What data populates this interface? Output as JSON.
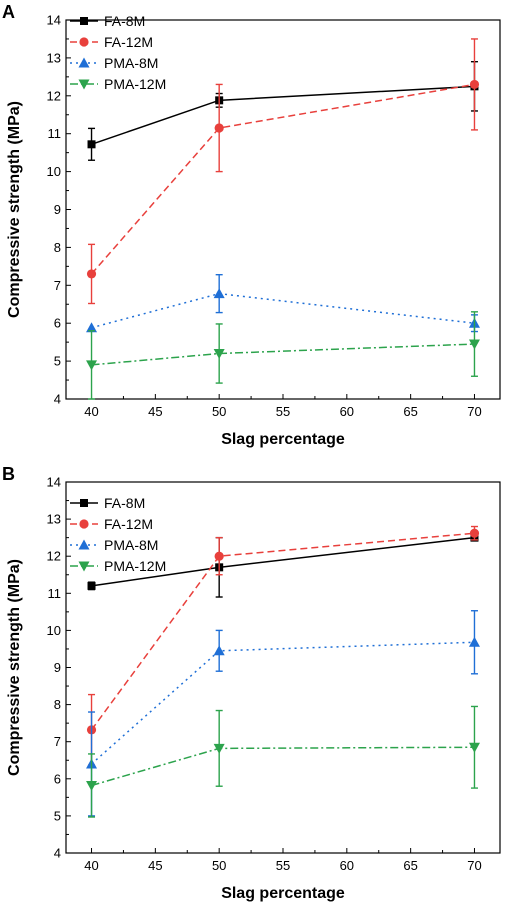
{
  "chart_data": [
    {
      "panel": "A",
      "type": "line",
      "xlabel": "Slag percentage",
      "ylabel": "Compressive strength (MPa)",
      "xlim": [
        38,
        72
      ],
      "ylim": [
        4,
        14
      ],
      "xticks": [
        40,
        45,
        50,
        55,
        60,
        65,
        70
      ],
      "yticks": [
        4,
        5,
        6,
        7,
        8,
        9,
        10,
        11,
        12,
        13,
        14
      ],
      "legend_position": "top-left",
      "grid": false,
      "x": [
        40,
        50,
        70
      ],
      "series": [
        {
          "name": "FA-8M",
          "values": [
            10.72,
            11.88,
            12.25
          ],
          "errors": [
            0.42,
            0.18,
            0.65
          ],
          "color": "#000000",
          "marker": "square",
          "line": "solid"
        },
        {
          "name": "FA-12M",
          "values": [
            7.3,
            11.15,
            12.3
          ],
          "errors": [
            0.78,
            1.15,
            1.2
          ],
          "color": "#e8403c",
          "marker": "circle",
          "line": "dashed"
        },
        {
          "name": "PMA-8M",
          "values": [
            5.88,
            6.78,
            6.0
          ],
          "errors": [
            0.0,
            0.5,
            0.22
          ],
          "color": "#1f6fd6",
          "marker": "triangle-up",
          "line": "dotted"
        },
        {
          "name": "PMA-12M",
          "values": [
            4.9,
            5.2,
            5.45
          ],
          "errors": [
            0.9,
            0.78,
            0.85
          ],
          "color": "#2ca34c",
          "marker": "triangle-down",
          "line": "dashdot"
        }
      ]
    },
    {
      "panel": "B",
      "type": "line",
      "xlabel": "Slag percentage",
      "ylabel": "Compressive strength (MPa)",
      "xlim": [
        38,
        72
      ],
      "ylim": [
        4,
        14
      ],
      "xticks": [
        40,
        45,
        50,
        55,
        60,
        65,
        70
      ],
      "yticks": [
        4,
        5,
        6,
        7,
        8,
        9,
        10,
        11,
        12,
        13,
        14
      ],
      "legend_position": "top-left",
      "grid": false,
      "x": [
        40,
        50,
        70
      ],
      "series": [
        {
          "name": "FA-8M",
          "values": [
            11.2,
            11.7,
            12.5
          ],
          "errors": [
            0.1,
            0.8,
            0.05
          ],
          "color": "#000000",
          "marker": "square",
          "line": "solid"
        },
        {
          "name": "FA-12M",
          "values": [
            7.32,
            12.0,
            12.62
          ],
          "errors": [
            0.95,
            0.5,
            0.18
          ],
          "color": "#e8403c",
          "marker": "circle",
          "line": "dashed"
        },
        {
          "name": "PMA-8M",
          "values": [
            6.4,
            9.45,
            9.68
          ],
          "errors": [
            1.4,
            0.55,
            0.85
          ],
          "color": "#1f6fd6",
          "marker": "triangle-up",
          "line": "dotted"
        },
        {
          "name": "PMA-12M",
          "values": [
            5.82,
            6.82,
            6.85
          ],
          "errors": [
            0.85,
            1.02,
            1.1
          ],
          "color": "#2ca34c",
          "marker": "triangle-down",
          "line": "dashdot"
        }
      ]
    }
  ]
}
